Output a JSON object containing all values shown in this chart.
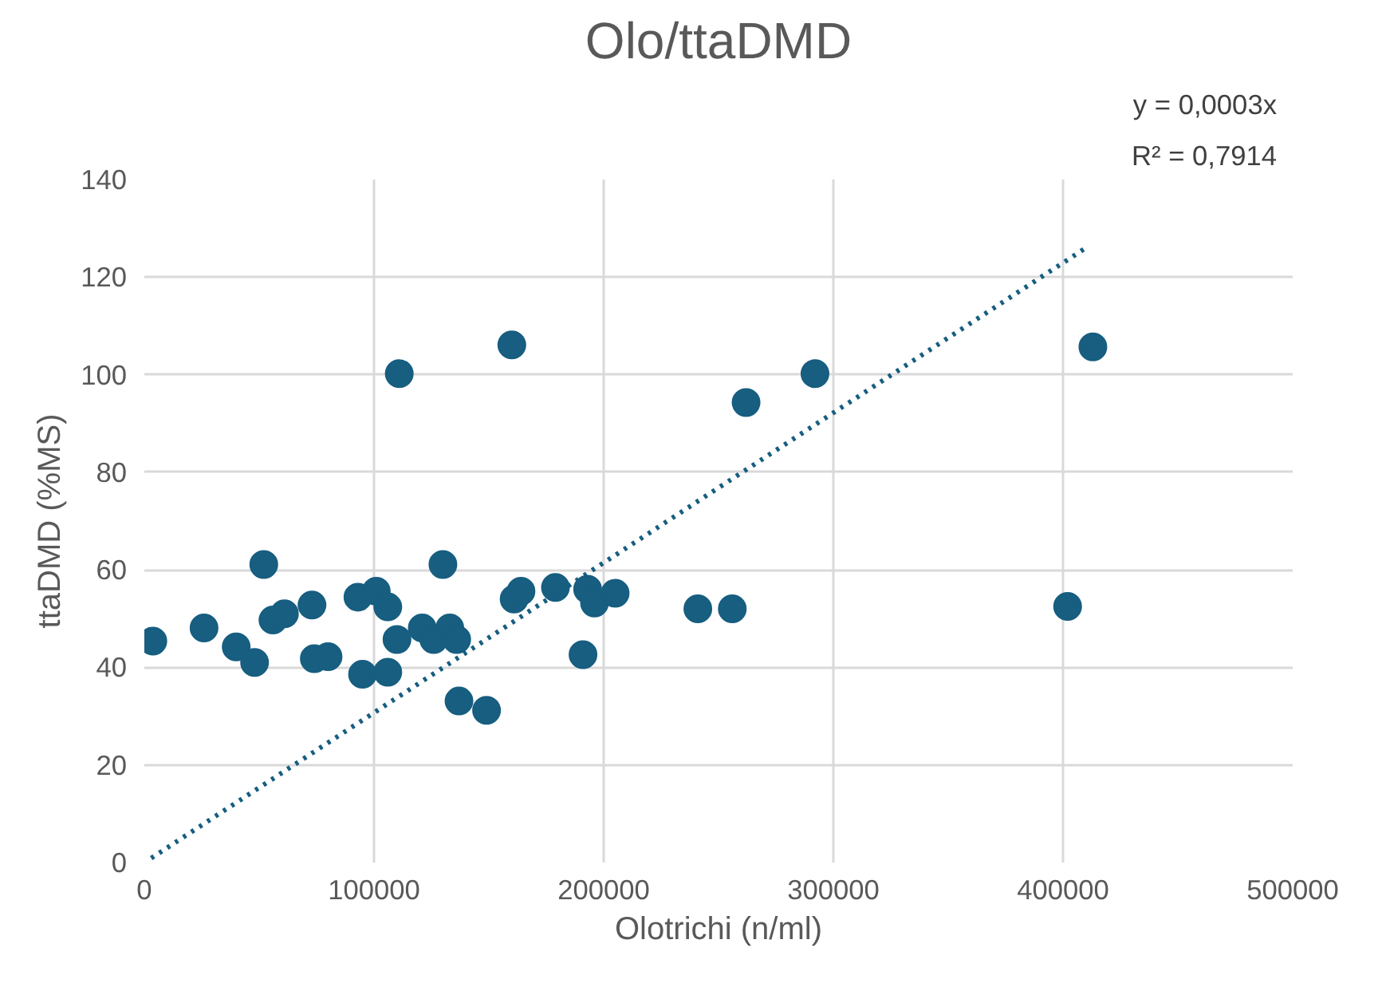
{
  "chart_data": {
    "type": "scatter",
    "title": "Olo/ttaDMD",
    "xlabel": "Olotrichi (n/ml)",
    "ylabel": "ttaDMD (%MS)",
    "annotations": [
      "y = 0,0003x",
      "R² = 0,7914"
    ],
    "xlim": [
      0,
      500000
    ],
    "ylim": [
      0,
      140
    ],
    "xticks": [
      0,
      100000,
      200000,
      300000,
      400000,
      500000
    ],
    "yticks": [
      0,
      20,
      40,
      60,
      80,
      100,
      120,
      140
    ],
    "grid": true,
    "marker": "circle",
    "series": [
      {
        "type": "scatter",
        "color": "#175e80",
        "x": [
          3700,
          26000,
          40000,
          48000,
          52000,
          56000,
          61000,
          73000,
          74000,
          80000,
          93000,
          95000,
          101000,
          106000,
          106000,
          110000,
          111000,
          121000,
          126000,
          130000,
          133000,
          136000,
          137000,
          149000,
          160000,
          161000,
          164000,
          179000,
          191000,
          193000,
          196000,
          205000,
          241000,
          256000,
          262000,
          292000,
          402000,
          413000
        ],
        "values": [
          45.4,
          48.1,
          44.2,
          41.0,
          61.1,
          49.7,
          51,
          52.8,
          41.8,
          42.2,
          54.4,
          38.6,
          55.6,
          52.4,
          39,
          45.7,
          100.2,
          48.1,
          45.7,
          61.1,
          48.1,
          45.7,
          33.1,
          31.2,
          106.1,
          54,
          55.6,
          56.4,
          42.6,
          56,
          53.2,
          55.2,
          52,
          52,
          94.3,
          100.2,
          52.5,
          105.7
        ]
      },
      {
        "type": "line",
        "color": "#175e80",
        "line_style": "dotted",
        "marker": "none",
        "x": [
          3000,
          410000
        ],
        "values": [
          0.9,
          126
        ]
      }
    ]
  }
}
